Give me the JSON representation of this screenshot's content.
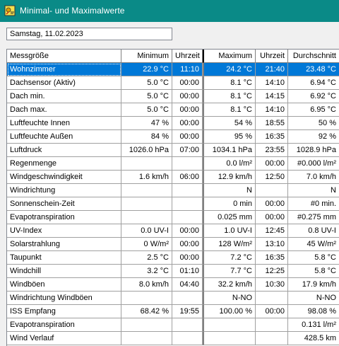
{
  "window": {
    "title": "Minimal- und Maximalwerte"
  },
  "date_field": {
    "value": "Samstag, 11.02.2023"
  },
  "table": {
    "headers": [
      "Messgröße",
      "Minimum",
      "Uhrzeit",
      "Maximum",
      "Uhrzeit",
      "Durchschnitt"
    ],
    "selected_row": 0,
    "rows": [
      [
        "Wohnzimmer",
        "22.9 °C",
        "11:10",
        "24.2 °C",
        "21:40",
        "23.48 °C"
      ],
      [
        "Dachsensor (Aktiv)",
        "5.0 °C",
        "00:00",
        "8.1 °C",
        "14:10",
        "6.94 °C"
      ],
      [
        "Dach min.",
        "5.0 °C",
        "00:00",
        "8.1 °C",
        "14:15",
        "6.92 °C"
      ],
      [
        "Dach max.",
        "5.0 °C",
        "00:00",
        "8.1 °C",
        "14:10",
        "6.95 °C"
      ],
      [
        "Luftfeuchte Innen",
        "47 %",
        "00:00",
        "54 %",
        "18:55",
        "50 %"
      ],
      [
        "Luftfeuchte Außen",
        "84 %",
        "00:00",
        "95 %",
        "16:35",
        "92 %"
      ],
      [
        "Luftdruck",
        "1026.0 hPa",
        "07:00",
        "1034.1 hPa",
        "23:55",
        "1028.9 hPa"
      ],
      [
        "Regenmenge",
        "",
        "",
        "0.0 l/m²",
        "00:00",
        "#0.000 l/m²"
      ],
      [
        "Windgeschwindigkeit",
        "1.6 km/h",
        "06:00",
        "12.9 km/h",
        "12:50",
        "7.0 km/h"
      ],
      [
        "Windrichtung",
        "",
        "",
        "N",
        "",
        "N"
      ],
      [
        "Sonnenschein-Zeit",
        "",
        "",
        "0 min",
        "00:00",
        "#0 min."
      ],
      [
        "Evapotranspiration",
        "",
        "",
        "0.025 mm",
        "00:00",
        "#0.275 mm"
      ],
      [
        "UV-Index",
        "0.0 UV-I",
        "00:00",
        "1.0 UV-I",
        "12:45",
        "0.8 UV-I"
      ],
      [
        "Solarstrahlung",
        "0 W/m²",
        "00:00",
        "128 W/m²",
        "13:10",
        "45 W/m²"
      ],
      [
        "Taupunkt",
        "2.5 °C",
        "00:00",
        "7.2 °C",
        "16:35",
        "5.8 °C"
      ],
      [
        "Windchill",
        "3.2 °C",
        "01:10",
        "7.7 °C",
        "12:25",
        "5.8 °C"
      ],
      [
        "Windböen",
        "8.0 km/h",
        "04:40",
        "32.2 km/h",
        "10:30",
        "17.9 km/h"
      ],
      [
        "Windrichtung Windböen",
        "",
        "",
        "N-NO",
        "",
        "N-NO"
      ],
      [
        "ISS Empfang",
        "68.42 %",
        "19:55",
        "100.00 %",
        "00:00",
        "98.08 %"
      ],
      [
        "Evapotranspiration",
        "",
        "",
        "",
        "",
        "0.131 l/m²"
      ],
      [
        "Wind Verlauf",
        "",
        "",
        "",
        "",
        "428.5 km"
      ]
    ]
  },
  "colors": {
    "titlebar": "#0a8a87",
    "selection": "#0078d7"
  },
  "icons": {
    "app": "weather-station-icon"
  }
}
